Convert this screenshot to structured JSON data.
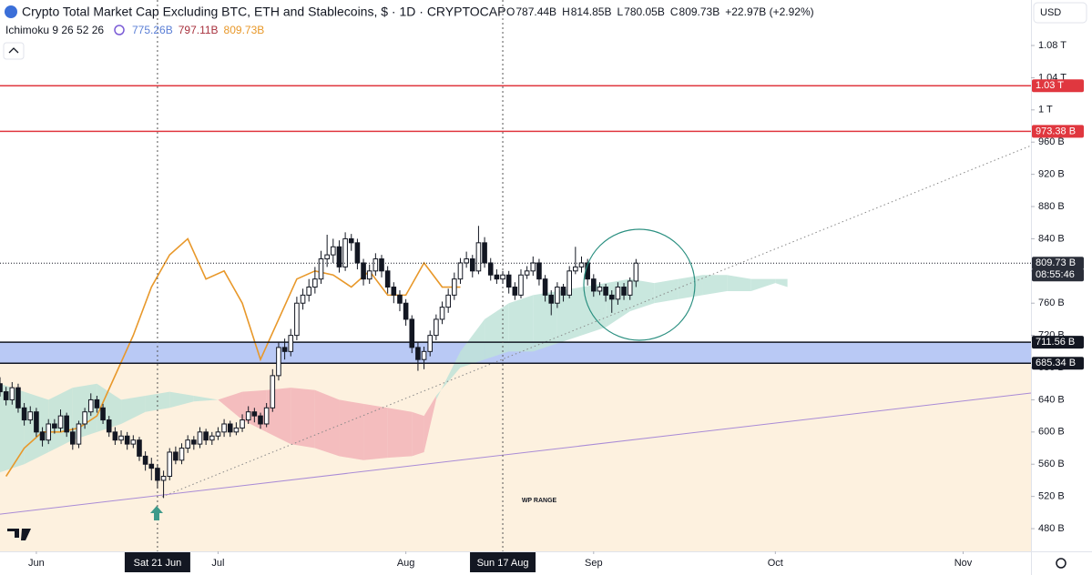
{
  "chart_data": {
    "type": "candlestick",
    "title": "Crypto Total Market Cap Excluding BTC, ETH and Stablecoins, $ · 1D · CRYPTOCAP",
    "ohlc_legend": [
      "O",
      "787.44B",
      "H",
      "814.85B",
      "L",
      "780.05B",
      "C",
      "809.73B",
      "+22.97B (+2.92%)"
    ],
    "indicator": {
      "name": "Ichimoku 9 26 52 26",
      "values": [
        {
          "label": "775.26B",
          "color": "#5b7fd6"
        },
        {
          "label": "797.11B",
          "color": "#a8323e"
        },
        {
          "label": "809.73B",
          "color": "#e8982a"
        }
      ]
    },
    "currency": "USD",
    "xlim": [
      -6,
      164.2
    ],
    "xticks": [
      {
        "value": 0,
        "label": "Jun"
      },
      {
        "value": 30,
        "label": "Jul"
      },
      {
        "value": 61,
        "label": "Aug"
      },
      {
        "value": 92,
        "label": "Sep"
      },
      {
        "value": 122,
        "label": "Oct"
      },
      {
        "value": 153,
        "label": "Nov"
      }
    ],
    "crosshairs": [
      {
        "value": 20,
        "label": "Sat 21 Jun"
      },
      {
        "value": 77,
        "label": "Sun 17 Aug"
      }
    ],
    "ylim": [
      451.8,
      1136.5
    ],
    "yticks": [
      {
        "value": 480,
        "label": "480 B"
      },
      {
        "value": 520,
        "label": "520 B"
      },
      {
        "value": 560,
        "label": "560 B"
      },
      {
        "value": 600,
        "label": "600 B"
      },
      {
        "value": 640,
        "label": "640 B"
      },
      {
        "value": 680,
        "label": "680 B"
      },
      {
        "value": 720,
        "label": "720 B"
      },
      {
        "value": 760,
        "label": "760 B"
      },
      {
        "value": 800,
        "label": "800 B"
      },
      {
        "value": 840,
        "label": "840 B"
      },
      {
        "value": 880,
        "label": "880 B"
      },
      {
        "value": 920,
        "label": "920 B"
      },
      {
        "value": 960,
        "label": "960 B"
      },
      {
        "value": 1000,
        "label": "1 T"
      },
      {
        "value": 1040,
        "label": "1.04 T"
      },
      {
        "value": 1080,
        "label": "1.08 T"
      }
    ],
    "up_color": "#ffffff",
    "down_color": "#131722",
    "candles": {
      "x": [
        -6,
        -5,
        -4,
        -3,
        -2,
        -1,
        0,
        1,
        2,
        3,
        4,
        5,
        6,
        7,
        8,
        9,
        10,
        11,
        12,
        13,
        14,
        15,
        16,
        17,
        18,
        19,
        20,
        21,
        22,
        23,
        24,
        25,
        26,
        27,
        28,
        29,
        30,
        31,
        32,
        33,
        34,
        35,
        36,
        37,
        38,
        39,
        40,
        41,
        42,
        43,
        44,
        45,
        46,
        47,
        48,
        49,
        50,
        51,
        52,
        53,
        54,
        55,
        56,
        57,
        58,
        59,
        60,
        61,
        62,
        63,
        64,
        65,
        66,
        67,
        68,
        69,
        70,
        71,
        72,
        73,
        74,
        75,
        76,
        77,
        78,
        79,
        80,
        81,
        82,
        83,
        84,
        85,
        86,
        87,
        88,
        89,
        90,
        91,
        92,
        93,
        94,
        95,
        96,
        97,
        98,
        99
      ],
      "open": [
        660,
        650,
        640,
        655,
        630,
        615,
        625,
        600,
        590,
        610,
        605,
        620,
        600,
        585,
        610,
        625,
        640,
        630,
        615,
        600,
        590,
        595,
        585,
        590,
        570,
        560,
        555,
        540,
        545,
        575,
        565,
        580,
        590,
        585,
        600,
        590,
        595,
        600,
        610,
        600,
        605,
        615,
        625,
        620,
        610,
        630,
        670,
        705,
        700,
        720,
        760,
        770,
        780,
        790,
        815,
        820,
        830,
        805,
        840,
        835,
        810,
        790,
        800,
        815,
        800,
        780,
        770,
        760,
        740,
        705,
        690,
        700,
        720,
        740,
        755,
        770,
        790,
        810,
        815,
        800,
        835,
        810,
        795,
        790,
        795,
        780,
        770,
        795,
        800,
        810,
        790,
        770,
        760,
        780,
        770,
        800,
        805,
        810,
        790,
        775,
        780,
        770,
        765,
        780,
        770,
        787.44
      ],
      "high": [
        668,
        656,
        662,
        660,
        636,
        632,
        630,
        606,
        616,
        616,
        628,
        624,
        605,
        614,
        630,
        648,
        645,
        635,
        620,
        606,
        602,
        600,
        596,
        594,
        576,
        568,
        560,
        552,
        580,
        582,
        586,
        596,
        595,
        606,
        604,
        600,
        606,
        616,
        614,
        612,
        622,
        632,
        630,
        624,
        636,
        678,
        712,
        716,
        728,
        768,
        778,
        790,
        805,
        825,
        845,
        840,
        838,
        848,
        846,
        840,
        815,
        808,
        822,
        820,
        806,
        786,
        776,
        765,
        745,
        712,
        706,
        726,
        746,
        762,
        778,
        798,
        816,
        824,
        820,
        856,
        842,
        816,
        802,
        800,
        800,
        786,
        802,
        806,
        818,
        815,
        795,
        776,
        786,
        784,
        806,
        830,
        818,
        815,
        796,
        786,
        784,
        776,
        786,
        785,
        792,
        814.85
      ],
      "low": [
        644,
        633,
        634,
        624,
        608,
        610,
        594,
        582,
        585,
        598,
        600,
        594,
        578,
        580,
        604,
        620,
        624,
        610,
        594,
        584,
        585,
        578,
        580,
        564,
        552,
        540,
        530,
        518,
        540,
        560,
        560,
        574,
        578,
        580,
        584,
        584,
        590,
        594,
        594,
        596,
        600,
        610,
        612,
        604,
        606,
        625,
        664,
        690,
        694,
        714,
        752,
        762,
        772,
        784,
        805,
        810,
        798,
        800,
        825,
        802,
        782,
        784,
        794,
        792,
        772,
        760,
        750,
        732,
        698,
        676,
        678,
        694,
        714,
        734,
        748,
        764,
        784,
        804,
        792,
        796,
        804,
        788,
        784,
        784,
        772,
        764,
        766,
        790,
        794,
        782,
        762,
        745,
        754,
        762,
        766,
        796,
        798,
        782,
        768,
        770,
        762,
        748,
        758,
        764,
        764,
        780.05
      ],
      "close": [
        650,
        640,
        655,
        630,
        615,
        625,
        600,
        590,
        610,
        605,
        620,
        600,
        585,
        610,
        625,
        640,
        630,
        615,
        600,
        590,
        595,
        585,
        590,
        570,
        560,
        555,
        540,
        545,
        575,
        565,
        580,
        590,
        585,
        600,
        590,
        595,
        600,
        610,
        600,
        605,
        615,
        625,
        620,
        610,
        630,
        670,
        705,
        700,
        720,
        760,
        770,
        780,
        790,
        815,
        820,
        830,
        805,
        840,
        835,
        810,
        790,
        800,
        815,
        800,
        780,
        770,
        760,
        740,
        705,
        690,
        700,
        720,
        740,
        755,
        770,
        790,
        810,
        815,
        800,
        835,
        810,
        795,
        790,
        795,
        780,
        770,
        795,
        800,
        810,
        790,
        770,
        760,
        780,
        770,
        800,
        805,
        810,
        790,
        775,
        780,
        770,
        765,
        780,
        770,
        787.44,
        809.73
      ]
    },
    "cloud": {
      "up_color": "#bfe3d8",
      "down_color": "#f2b4b9",
      "x": [
        -6,
        -2,
        2,
        6,
        10,
        14,
        18,
        22,
        26,
        30,
        34,
        38,
        42,
        46,
        50,
        54,
        58,
        62,
        64,
        66,
        70,
        74,
        78,
        82,
        86,
        90,
        94,
        98,
        102,
        106,
        110,
        114,
        118,
        122,
        124
      ],
      "span_a": [
        660,
        650,
        640,
        655,
        660,
        640,
        645,
        650,
        645,
        640,
        615,
        600,
        585,
        580,
        570,
        565,
        568,
        570,
        575,
        640,
        700,
        740,
        760,
        770,
        775,
        780,
        785,
        790,
        785,
        790,
        795,
        795,
        790,
        790,
        790
      ],
      "span_b": [
        550,
        560,
        575,
        590,
        600,
        610,
        625,
        630,
        638,
        640,
        650,
        652,
        655,
        652,
        640,
        635,
        630,
        625,
        620,
        645,
        680,
        690,
        700,
        700,
        710,
        720,
        730,
        750,
        760,
        765,
        770,
        775,
        775,
        785,
        780
      ]
    },
    "lagging_span": {
      "color": "#e8982a",
      "x": [
        -5,
        -2,
        1,
        4,
        7,
        10,
        13,
        16,
        19,
        22,
        25,
        28,
        31,
        34,
        37,
        40,
        43,
        46,
        49,
        52,
        55,
        58,
        61,
        64,
        67,
        70
      ],
      "values": [
        545,
        580,
        600,
        600,
        605,
        620,
        670,
        720,
        780,
        820,
        840,
        790,
        800,
        760,
        690,
        740,
        790,
        800,
        795,
        780,
        800,
        770,
        770,
        810,
        780,
        780
      ]
    },
    "trend_lines": [
      {
        "color": "#888888",
        "dashed": true,
        "x": [
          20.75,
          164.2
        ],
        "values": [
          519.5,
          955.7
        ]
      },
      {
        "color": "#a98bd6",
        "dashed": false,
        "x": [
          -6,
          164.2
        ],
        "values": [
          498,
          648.4
        ]
      }
    ],
    "levels": [
      {
        "value": 1030,
        "label": "1.03 T",
        "color": "#e0373f"
      },
      {
        "value": 973.38,
        "label": "973.38 B",
        "color": "#e0373f"
      }
    ],
    "zone": {
      "color": "#b9c9f5",
      "bounds": [
        {
          "value": 685.34,
          "label": "685.34 B"
        },
        {
          "value": 711.56,
          "label": "711.56 B"
        }
      ]
    },
    "range_box": {
      "label": "WP RANGE",
      "top": 685.34,
      "color": "#fdf1df"
    },
    "last_price": {
      "value": 809.73,
      "label": "809.73 B",
      "countdown": "08:55:46"
    }
  }
}
